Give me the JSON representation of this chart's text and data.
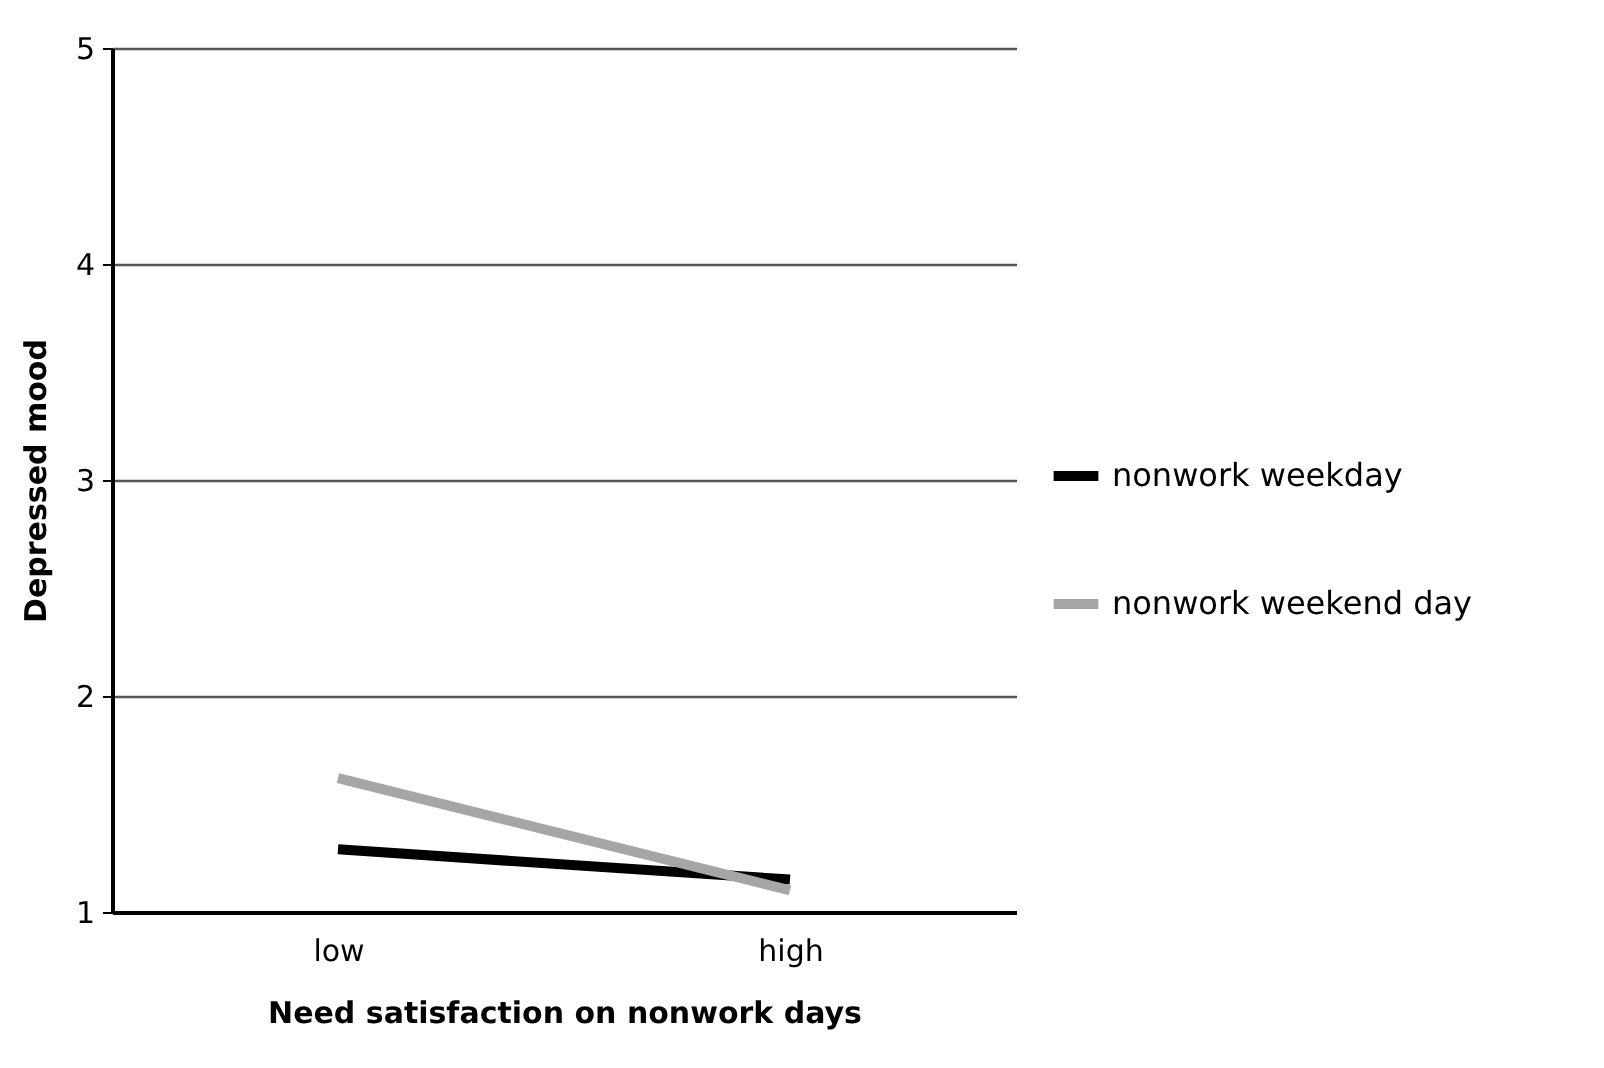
{
  "chart_data": {
    "type": "line",
    "xlabel": "Need satisfaction on nonwork days",
    "ylabel": "Depressed mood",
    "categories": [
      "low",
      "high"
    ],
    "series": [
      {
        "name": "nonwork weekday",
        "color": "#000000",
        "values": [
          1.29,
          1.15
        ]
      },
      {
        "name": "nonwork weekend day",
        "color": "#a6a6a6",
        "values": [
          1.62,
          1.1
        ]
      }
    ],
    "ylim": [
      1,
      5
    ],
    "yticks": [
      1,
      2,
      3,
      4,
      5
    ],
    "grid": "y",
    "legend": "right",
    "marker": "none",
    "line_style": "solid"
  }
}
